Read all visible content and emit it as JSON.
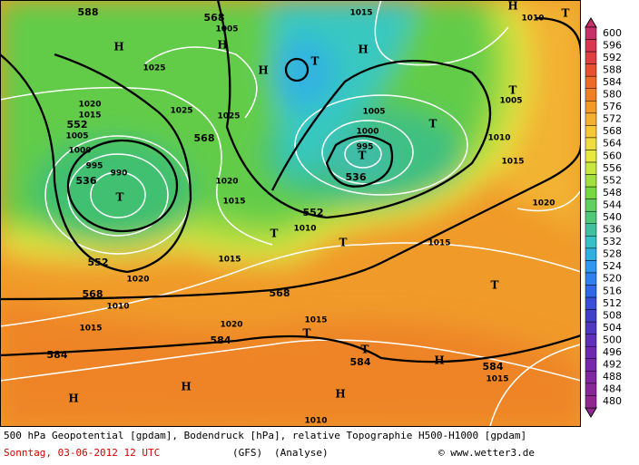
{
  "map": {
    "colorbar": {
      "labels": [
        "600",
        "596",
        "592",
        "588",
        "584",
        "580",
        "576",
        "572",
        "568",
        "564",
        "560",
        "556",
        "552",
        "548",
        "544",
        "540",
        "536",
        "532",
        "528",
        "524",
        "520",
        "516",
        "512",
        "508",
        "504",
        "500",
        "496",
        "492",
        "488",
        "484",
        "480"
      ]
    },
    "labels": [
      "588",
      "568",
      "H",
      "1005",
      "H",
      "H",
      "T",
      "1015",
      "H",
      "1010",
      "T",
      "H",
      "1025",
      "1025",
      "1025",
      "1020",
      "1015",
      "552",
      "1005",
      "1000",
      "995",
      "990",
      "536",
      "568",
      "1020",
      "1015",
      "T",
      "995",
      "1000",
      "1005",
      "536",
      "T",
      "T",
      "1005",
      "1010",
      "1015",
      "552",
      "T",
      "1010",
      "T",
      "1015",
      "1020",
      "552",
      "1015",
      "1020",
      "568",
      "1010",
      "568",
      "T",
      "1015",
      "1020",
      "1015",
      "T",
      "584",
      "584",
      "T",
      "584",
      "H",
      "584",
      "1015",
      "H",
      "H",
      "H",
      "1010",
      "T"
    ]
  },
  "footer": {
    "line1": "500 hPa Geopotential [gpdam], Bodendruck [hPa], relative Topographie H500-H1000 [gpdam]",
    "date": "Sonntag, 03-06-2012  12 UTC",
    "model": "(GFS)",
    "run": "(Analyse)",
    "credit": "© www.wetter3.de"
  }
}
